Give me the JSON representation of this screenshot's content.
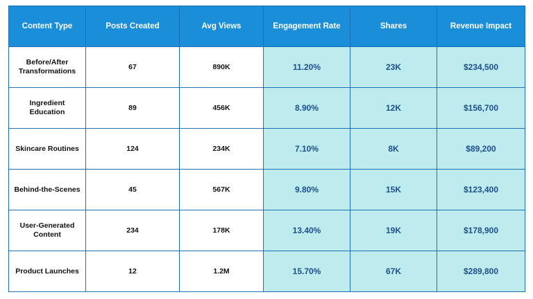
{
  "table": {
    "headers": [
      "Content Type",
      "Posts Created",
      "Avg Views",
      "Engagement Rate",
      "Shares",
      "Revenue Impact"
    ],
    "rows": [
      [
        "Before/After Transformations",
        "67",
        "890K",
        "11.20%",
        "23K",
        "$234,500"
      ],
      [
        "Ingredient Education",
        "89",
        "456K",
        "8.90%",
        "12K",
        "$156,700"
      ],
      [
        "Skincare Routines",
        "124",
        "234K",
        "7.10%",
        "8K",
        "$89,200"
      ],
      [
        "Behind-the-Scenes",
        "45",
        "567K",
        "9.80%",
        "15K",
        "$123,400"
      ],
      [
        "User-Generated Content",
        "234",
        "178K",
        "13.40%",
        "19K",
        "$178,900"
      ],
      [
        "Product Launches",
        "12",
        "1.2M",
        "15.70%",
        "67K",
        "$289,800"
      ]
    ]
  },
  "colors": {
    "header_bg": "#1a8ed8",
    "header_text": "#ffffff",
    "highlight_bg": "#bdebee",
    "highlight_text": "#1c4f8c",
    "border": "#1f6fb4"
  }
}
